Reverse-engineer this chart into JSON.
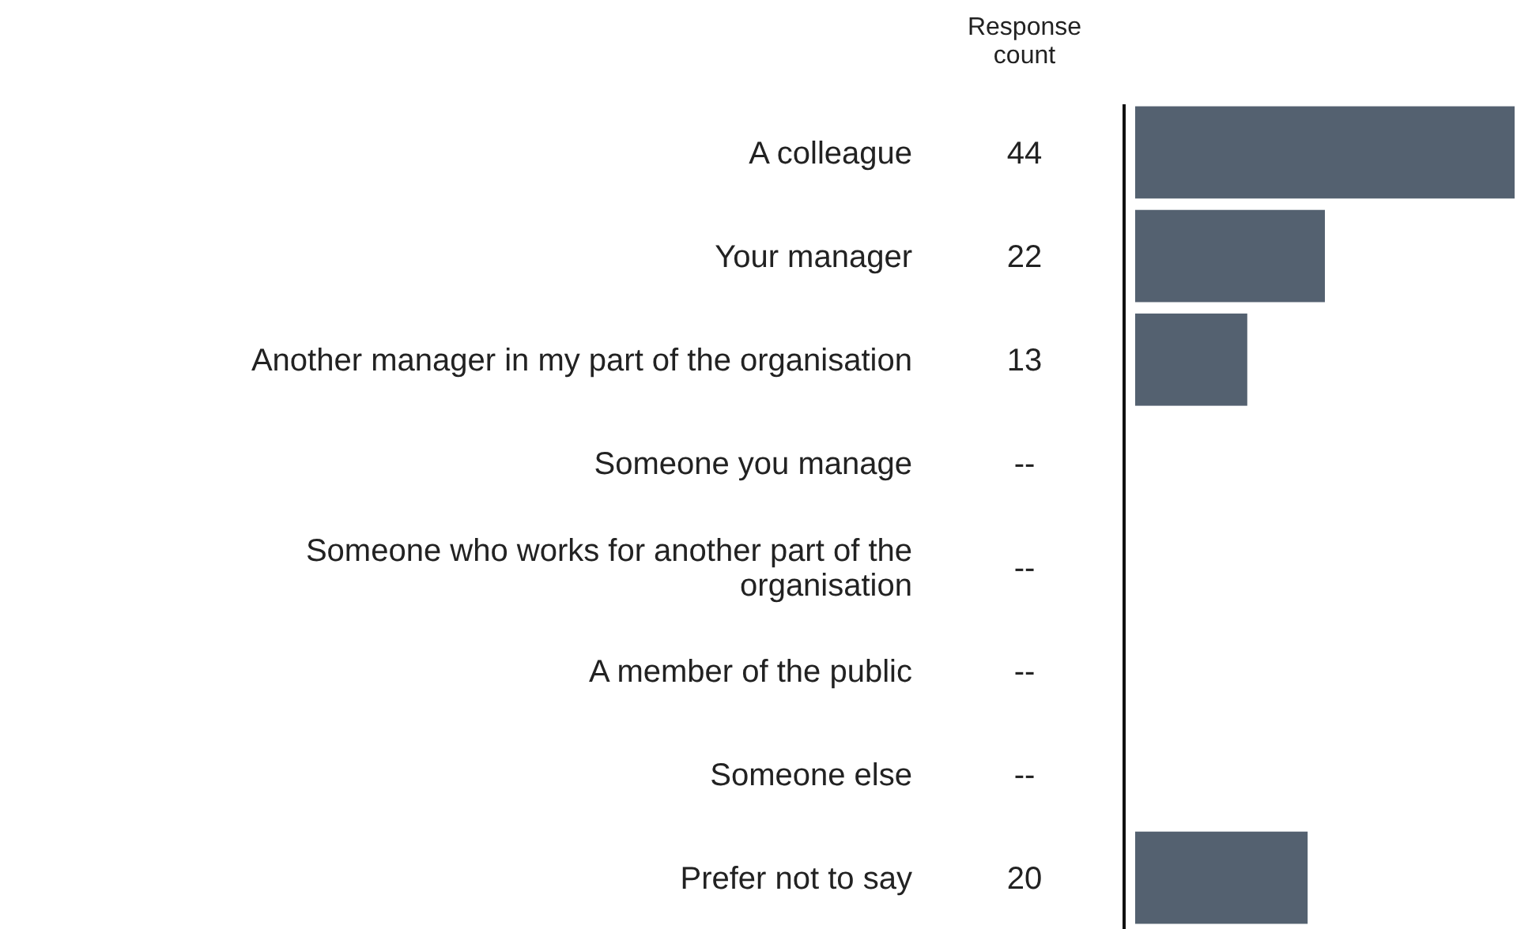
{
  "chart_data": {
    "type": "bar",
    "orientation": "horizontal",
    "categories": [
      "A colleague",
      "Your manager",
      "Another manager in my part of the organisation",
      "Someone you manage",
      "Someone who works for another part of the organisation",
      "A member of the public",
      "Someone else",
      "Prefer not to say"
    ],
    "values": [
      44,
      22,
      13,
      null,
      null,
      null,
      null,
      20
    ],
    "value_labels": [
      "44",
      "22",
      "13",
      "--",
      "--",
      "--",
      "--",
      "20"
    ],
    "color": "#546170",
    "xlim": [
      0,
      44
    ],
    "tick_labels": "y",
    "annotations": [
      "Response count"
    ]
  }
}
